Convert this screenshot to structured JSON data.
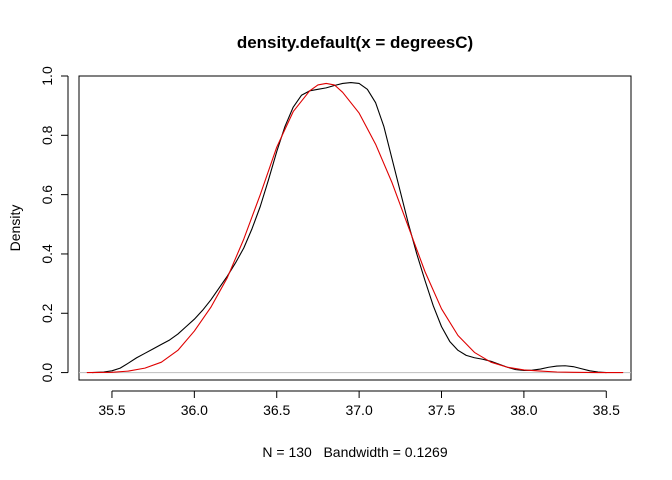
{
  "chart_data": {
    "type": "line",
    "title": "density.default(x = degreesC)",
    "xlabel": "N = 130   Bandwidth = 0.1269",
    "ylabel": "Density",
    "xlim": [
      35.3,
      38.65
    ],
    "ylim": [
      -0.025,
      1.0
    ],
    "x_ticks": [
      35.5,
      36.0,
      36.5,
      37.0,
      37.5,
      38.0,
      38.5
    ],
    "x_tick_labels": [
      "35.5",
      "36.0",
      "36.5",
      "37.0",
      "37.5",
      "38.0",
      "38.5"
    ],
    "y_ticks": [
      0.0,
      0.2,
      0.4,
      0.6,
      0.8,
      1.0
    ],
    "y_tick_labels": [
      "0.0",
      "0.2",
      "0.4",
      "0.6",
      "0.8",
      "1.0"
    ],
    "grid": false,
    "legend": "none",
    "baseline": {
      "y": 0,
      "color": "#bebebe"
    },
    "series": [
      {
        "color": "#000000",
        "points": [
          [
            35.38,
            0.0
          ],
          [
            35.45,
            0.002
          ],
          [
            35.5,
            0.006
          ],
          [
            35.55,
            0.015
          ],
          [
            35.6,
            0.032
          ],
          [
            35.65,
            0.05
          ],
          [
            35.7,
            0.065
          ],
          [
            35.75,
            0.08
          ],
          [
            35.8,
            0.095
          ],
          [
            35.85,
            0.11
          ],
          [
            35.9,
            0.13
          ],
          [
            35.95,
            0.155
          ],
          [
            36.0,
            0.18
          ],
          [
            36.05,
            0.21
          ],
          [
            36.1,
            0.245
          ],
          [
            36.15,
            0.285
          ],
          [
            36.2,
            0.325
          ],
          [
            36.25,
            0.37
          ],
          [
            36.3,
            0.42
          ],
          [
            36.35,
            0.485
          ],
          [
            36.4,
            0.56
          ],
          [
            36.45,
            0.65
          ],
          [
            36.5,
            0.745
          ],
          [
            36.55,
            0.83
          ],
          [
            36.6,
            0.895
          ],
          [
            36.65,
            0.935
          ],
          [
            36.7,
            0.95
          ],
          [
            36.75,
            0.955
          ],
          [
            36.8,
            0.96
          ],
          [
            36.85,
            0.968
          ],
          [
            36.9,
            0.975
          ],
          [
            36.95,
            0.978
          ],
          [
            37.0,
            0.975
          ],
          [
            37.05,
            0.955
          ],
          [
            37.1,
            0.91
          ],
          [
            37.15,
            0.83
          ],
          [
            37.2,
            0.72
          ],
          [
            37.25,
            0.61
          ],
          [
            37.3,
            0.5
          ],
          [
            37.35,
            0.4
          ],
          [
            37.4,
            0.31
          ],
          [
            37.45,
            0.225
          ],
          [
            37.5,
            0.155
          ],
          [
            37.55,
            0.105
          ],
          [
            37.6,
            0.075
          ],
          [
            37.65,
            0.058
          ],
          [
            37.7,
            0.05
          ],
          [
            37.75,
            0.045
          ],
          [
            37.8,
            0.038
          ],
          [
            37.85,
            0.028
          ],
          [
            37.9,
            0.018
          ],
          [
            37.95,
            0.01
          ],
          [
            38.0,
            0.007
          ],
          [
            38.05,
            0.008
          ],
          [
            38.1,
            0.012
          ],
          [
            38.15,
            0.018
          ],
          [
            38.2,
            0.022
          ],
          [
            38.25,
            0.023
          ],
          [
            38.3,
            0.02
          ],
          [
            38.35,
            0.013
          ],
          [
            38.4,
            0.006
          ],
          [
            38.45,
            0.002
          ],
          [
            38.5,
            0.0
          ]
        ]
      },
      {
        "color": "#df0000",
        "points": [
          [
            35.35,
            0.0
          ],
          [
            35.5,
            0.001
          ],
          [
            35.6,
            0.005
          ],
          [
            35.7,
            0.015
          ],
          [
            35.8,
            0.035
          ],
          [
            35.9,
            0.075
          ],
          [
            36.0,
            0.14
          ],
          [
            36.1,
            0.22
          ],
          [
            36.2,
            0.32
          ],
          [
            36.3,
            0.45
          ],
          [
            36.4,
            0.6
          ],
          [
            36.5,
            0.76
          ],
          [
            36.6,
            0.88
          ],
          [
            36.7,
            0.95
          ],
          [
            36.75,
            0.97
          ],
          [
            36.8,
            0.975
          ],
          [
            36.85,
            0.97
          ],
          [
            36.9,
            0.945
          ],
          [
            37.0,
            0.875
          ],
          [
            37.1,
            0.77
          ],
          [
            37.2,
            0.64
          ],
          [
            37.3,
            0.49
          ],
          [
            37.4,
            0.34
          ],
          [
            37.5,
            0.215
          ],
          [
            37.6,
            0.125
          ],
          [
            37.7,
            0.068
          ],
          [
            37.8,
            0.035
          ],
          [
            37.9,
            0.018
          ],
          [
            38.0,
            0.009
          ],
          [
            38.1,
            0.005
          ],
          [
            38.2,
            0.002
          ],
          [
            38.3,
            0.001
          ],
          [
            38.45,
            0.0
          ],
          [
            38.6,
            0.0
          ]
        ]
      }
    ]
  }
}
